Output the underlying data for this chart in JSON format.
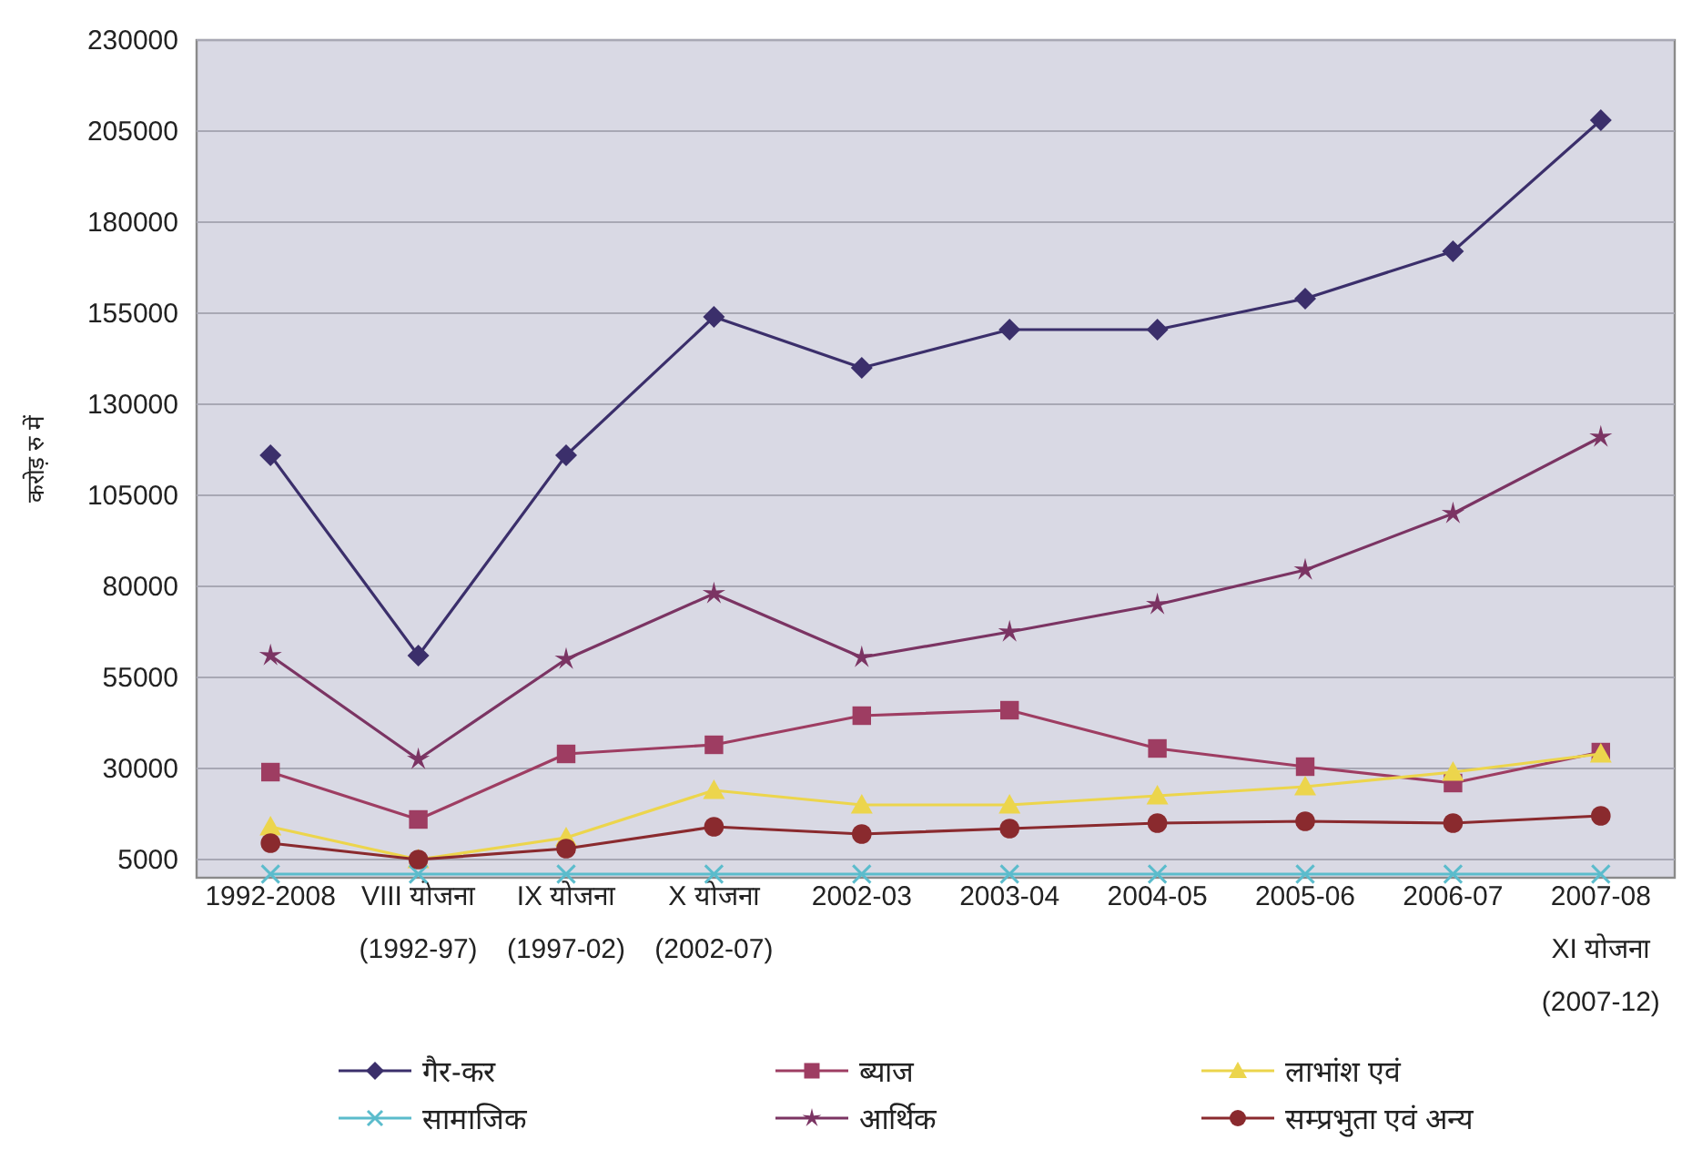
{
  "chart_data": {
    "type": "line",
    "ylabel": "करोड़ रु में",
    "categories": [
      "1992-2008",
      "VIII योजना\n(1992-97)",
      "IX योजना\n(1997-02)",
      "X योजना\n(2002-07)",
      "2002-03",
      "2003-04",
      "2004-05",
      "2005-06",
      "2006-07",
      "2007-08\nXI योजना\n(2007-12)"
    ],
    "series": [
      {
        "name": "गैर-कर",
        "color": "#3b2f6b",
        "marker": "diamond",
        "values": [
          116000,
          61000,
          116000,
          154000,
          140000,
          150500,
          150500,
          159000,
          172000,
          208000
        ]
      },
      {
        "name": "ब्याज",
        "color": "#9e3d62",
        "marker": "square",
        "values": [
          29000,
          16000,
          34000,
          36500,
          44500,
          46000,
          35500,
          30500,
          26000,
          34500
        ]
      },
      {
        "name": "लाभांश एवं",
        "color": "#ecd54c",
        "marker": "triangle",
        "values": [
          14000,
          5000,
          11000,
          24000,
          20000,
          20000,
          22500,
          25000,
          29000,
          34000
        ]
      },
      {
        "name": "सामाजिक",
        "color": "#5bbccc",
        "marker": "cross",
        "values": [
          1000,
          1000,
          1000,
          1000,
          1000,
          1000,
          1000,
          1000,
          1000,
          1000
        ]
      },
      {
        "name": "आर्थिक",
        "color": "#7b3463",
        "marker": "star",
        "values": [
          61000,
          32500,
          60000,
          78000,
          60500,
          67500,
          75000,
          84500,
          100000,
          121000
        ]
      },
      {
        "name": "सम्प्रभुता एवं अन्य",
        "color": "#8a2a2e",
        "marker": "circle",
        "values": [
          9500,
          5000,
          8000,
          14000,
          12000,
          13500,
          15000,
          15500,
          15000,
          17000
        ]
      }
    ],
    "ylim": [
      0,
      230000
    ],
    "yticks": [
      5000,
      30000,
      55000,
      80000,
      105000,
      130000,
      155000,
      180000,
      205000,
      230000
    ],
    "grid": "y",
    "legend": "bottom"
  }
}
